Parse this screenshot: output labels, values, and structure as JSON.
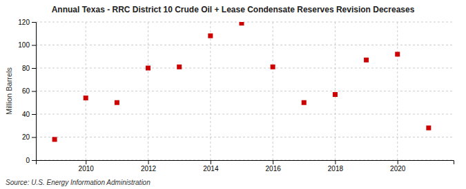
{
  "chart_data": {
    "type": "scatter",
    "title": "Annual Texas - RRC District 10 Crude Oil + Lease Condensate Reserves Revision Decreases",
    "ylabel": "Million Barrels",
    "annotations": [
      "Source: U.S. Energy Information Administration"
    ],
    "x": [
      2009,
      2010,
      2011,
      2012,
      2013,
      2014,
      2015,
      2016,
      2017,
      2018,
      2019,
      2020,
      2021
    ],
    "values": [
      18,
      54,
      50,
      80,
      81,
      108,
      119,
      81,
      50,
      57,
      87,
      92,
      28
    ],
    "xlim": [
      2008.4,
      2021.8
    ],
    "ylim": [
      0,
      120
    ],
    "xticks": [
      2010,
      2012,
      2014,
      2016,
      2018,
      2020
    ],
    "yticks": [
      0,
      20,
      40,
      60,
      80,
      100,
      120
    ],
    "color": "#cc0000",
    "marker": "square",
    "grid": true
  }
}
